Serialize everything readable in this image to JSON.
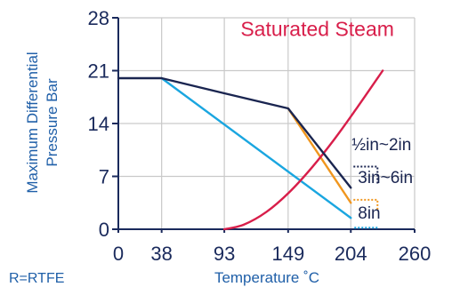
{
  "chart_data": {
    "type": "line",
    "title": "",
    "xlabel": "Temperature ˚C",
    "ylabel_line1": "Maximum Differential",
    "ylabel_line2": "Pressure Bar",
    "footnote": "R=RTFE",
    "xlim": [
      0,
      260
    ],
    "ylim": [
      0,
      28
    ],
    "xticks": [
      0,
      38,
      93,
      149,
      204,
      260
    ],
    "yticks": [
      0,
      7,
      14,
      21,
      28
    ],
    "grid": true,
    "colors": {
      "grid": "#c9c9c9",
      "axis": "#1a2a5c",
      "half_to_2in": "#1a2550",
      "3in_to_6in": "#f0961e",
      "8in": "#1aa6e0",
      "saturated_steam": "#d81e4a"
    },
    "series": [
      {
        "key": "half_to_2in",
        "name": "½in~2in",
        "legend_style": "dotted-box",
        "x": [
          0,
          38,
          93,
          149,
          204
        ],
        "y": [
          20,
          20,
          18,
          16,
          5.5
        ]
      },
      {
        "key": "3in_to_6in",
        "name": "3in~6in",
        "legend_style": "dotted-box",
        "x": [
          149,
          204
        ],
        "y": [
          16,
          3.5
        ]
      },
      {
        "key": "8in",
        "name": "8in",
        "legend_style": "dotted-underline",
        "x": [
          38,
          204
        ],
        "y": [
          20,
          1.5
        ]
      },
      {
        "key": "saturated_steam",
        "name": "Saturated Steam",
        "legend_style": "text",
        "x": [
          93,
          110,
          130,
          150,
          170,
          190,
          210,
          232
        ],
        "y": [
          0,
          0.6,
          2.3,
          4.9,
          8.2,
          12.0,
          16.2,
          21.0
        ]
      }
    ]
  }
}
